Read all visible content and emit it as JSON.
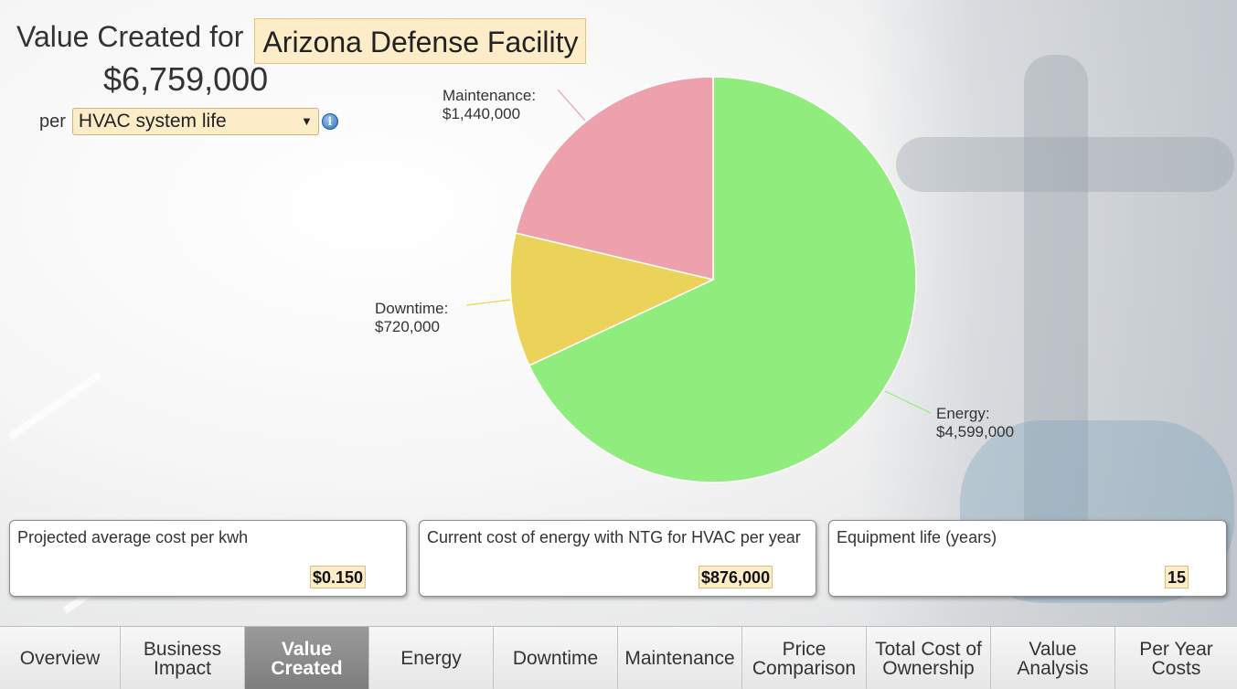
{
  "header": {
    "title_prefix": "Value Created for",
    "facility_name": "Arizona Defense Facility",
    "total_value": "$6,759,000",
    "per_label": "per",
    "period_select": "HVAC system life",
    "select_arrow": "▼",
    "info_icon_glyph": "i",
    "info_icon": "info-icon"
  },
  "chart_data": {
    "type": "pie",
    "slices": [
      {
        "label": "Energy:",
        "value_text": "$4,599,000",
        "value": 4599000,
        "color": "#90ec7c"
      },
      {
        "label": "Downtime:",
        "value_text": "$720,000",
        "value": 720000,
        "color": "#ebd35a"
      },
      {
        "label": "Maintenance:",
        "value_text": "$1,440,000",
        "value": 1440000,
        "color": "#eca1ac"
      }
    ]
  },
  "cards": [
    {
      "label": "Projected average cost per kwh",
      "value": "$0.150"
    },
    {
      "label": "Current cost of energy with NTG for HVAC per year",
      "value": "$876,000"
    },
    {
      "label": "Equipment life (years)",
      "value": "15"
    }
  ],
  "tabs": [
    {
      "line1": "Overview",
      "line2": "",
      "active": false
    },
    {
      "line1": "Business",
      "line2": "Impact",
      "active": false
    },
    {
      "line1": "Value",
      "line2": "Created",
      "active": true
    },
    {
      "line1": "Energy",
      "line2": "",
      "active": false
    },
    {
      "line1": "Downtime",
      "line2": "",
      "active": false
    },
    {
      "line1": "Maintenance",
      "line2": "",
      "active": false
    },
    {
      "line1": "Price",
      "line2": "Comparison",
      "active": false
    },
    {
      "line1": "Total Cost of",
      "line2": "Ownership",
      "active": false
    },
    {
      "line1": "Value",
      "line2": "Analysis",
      "active": false
    },
    {
      "line1": "Per Year",
      "line2": "Costs",
      "active": false
    }
  ]
}
